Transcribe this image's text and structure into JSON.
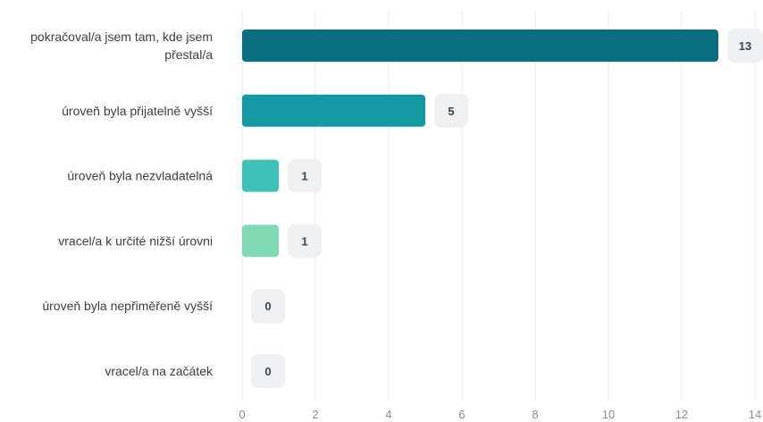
{
  "chart_data": {
    "type": "bar",
    "orientation": "horizontal",
    "categories": [
      [
        "pokračoval/a jsem tam, kde jsem",
        "přestal/a"
      ],
      [
        "úroveň byla přijatelně vyšší"
      ],
      [
        "úroveň byla nezvladatelná"
      ],
      [
        "vracel/a k určité nižší úrovni"
      ],
      [
        "úroveň byla nepřiměřeně vyšší"
      ],
      [
        "vracel/a na začátek"
      ]
    ],
    "values": [
      13,
      5,
      1,
      1,
      0,
      0
    ],
    "colors": [
      "#0b6e80",
      "#1399a3",
      "#3fc1b8",
      "#7fd9b5",
      "#9be0c0",
      "#9be0c0"
    ],
    "xlim": [
      0,
      14
    ],
    "xticks": [
      0,
      2,
      4,
      6,
      8,
      10,
      12,
      14
    ],
    "grid": true,
    "data_labels": true
  }
}
